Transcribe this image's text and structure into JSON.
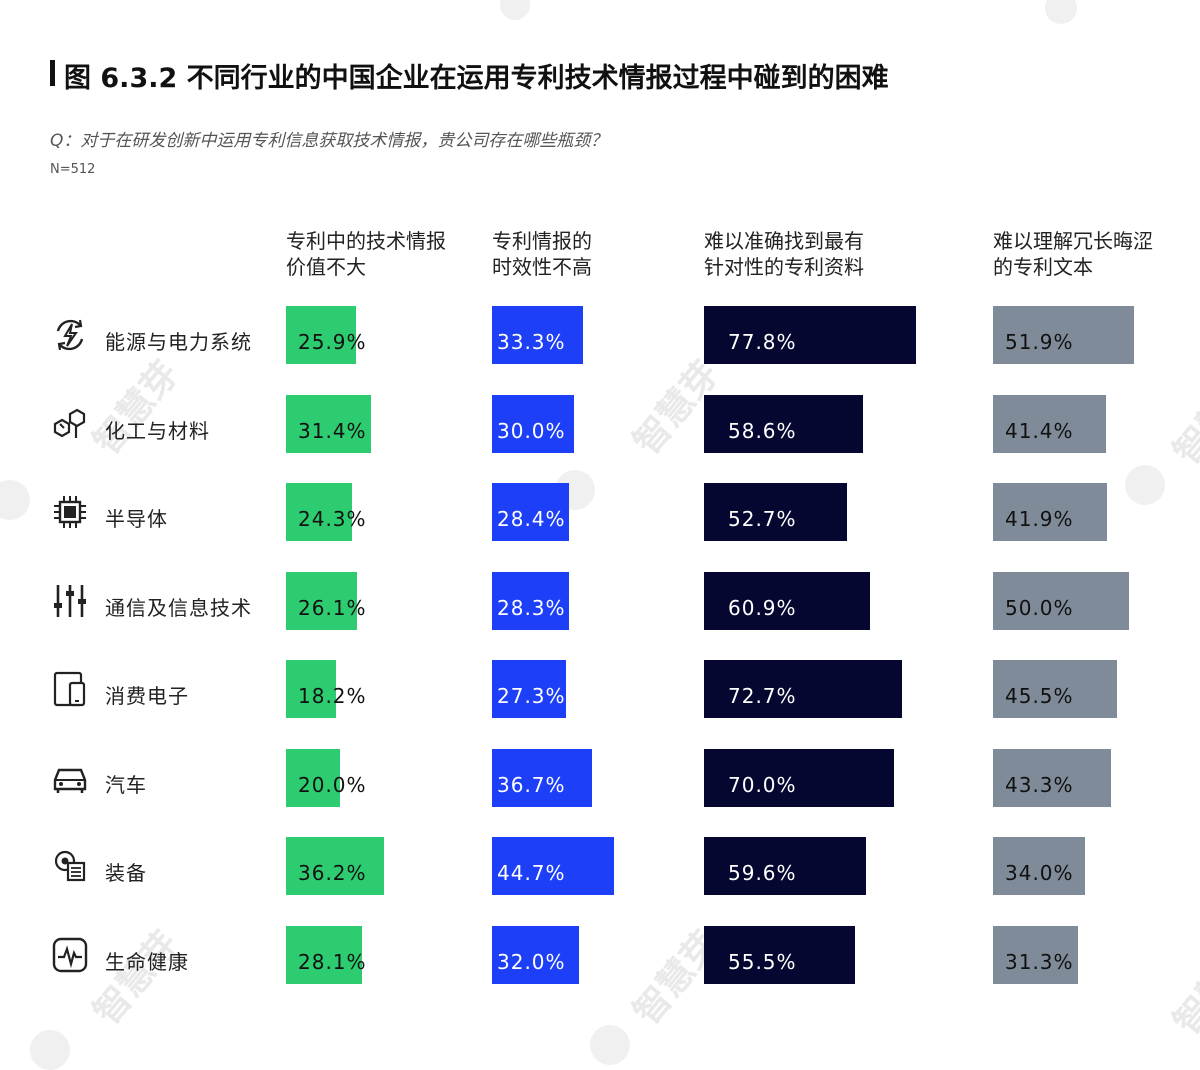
{
  "title": "图 6.3.2 不同行业的中国企业在运用专利技术情报过程中碰到的困难",
  "question": "Q：对于在研发创新中运用专利信息获取技术情报，贵公司存在哪些瓶颈？",
  "sample_size": "N=512",
  "watermark": "智慧芽",
  "chart_data": {
    "type": "bar",
    "orientation": "horizontal",
    "unit": "%",
    "categories": [
      "能源与电力系统",
      "化工与材料",
      "半导体",
      "通信及信息技术",
      "消费电子",
      "汽车",
      "装备",
      "生命健康"
    ],
    "category_icons": [
      "energy-icon",
      "chemical-icon",
      "chip-icon",
      "sliders-icon",
      "device-icon",
      "car-icon",
      "equipment-icon",
      "health-icon"
    ],
    "series": [
      {
        "name": "专利中的技术情报价值不大",
        "name_lines": [
          "专利中的技术情报",
          "价值不大"
        ],
        "color": "#2ecc71",
        "values": [
          25.9,
          31.4,
          24.3,
          26.1,
          18.2,
          20.0,
          36.2,
          28.1
        ],
        "labels": [
          "25.9%",
          "31.4%",
          "24.3%",
          "26.1%",
          "18.2%",
          "20.0%",
          "36.2%",
          "28.1%"
        ]
      },
      {
        "name": "专利情报的时效性不高",
        "name_lines": [
          "专利情报的",
          "时效性不高"
        ],
        "color": "#1c3ff7",
        "values": [
          33.3,
          30.0,
          28.4,
          28.3,
          27.3,
          36.7,
          44.7,
          32.0
        ],
        "labels": [
          "33.3%",
          "30.0%",
          "28.4%",
          "28.3%",
          "27.3%",
          "36.7%",
          "44.7%",
          "32.0%"
        ]
      },
      {
        "name": "难以准确找到最有针对性的专利资料",
        "name_lines": [
          "难以准确找到最有",
          "针对性的专利资料"
        ],
        "color": "#050730",
        "values": [
          77.8,
          58.6,
          52.7,
          60.9,
          72.7,
          70.0,
          59.6,
          55.5
        ],
        "labels": [
          "77.8%",
          "58.6%",
          "52.7%",
          "60.9%",
          "72.7%",
          "70.0%",
          "59.6%",
          "55.5%"
        ]
      },
      {
        "name": "难以理解冗长晦涩的专利文本",
        "name_lines": [
          "难以理解冗长晦涩",
          "的专利文本"
        ],
        "color": "#7f8b99",
        "values": [
          51.9,
          41.4,
          41.9,
          50.0,
          45.5,
          43.3,
          34.0,
          31.3
        ],
        "labels": [
          "51.9%",
          "41.4%",
          "41.9%",
          "50.0%",
          "45.5%",
          "43.3%",
          "34.0%",
          "31.3%"
        ]
      }
    ]
  }
}
